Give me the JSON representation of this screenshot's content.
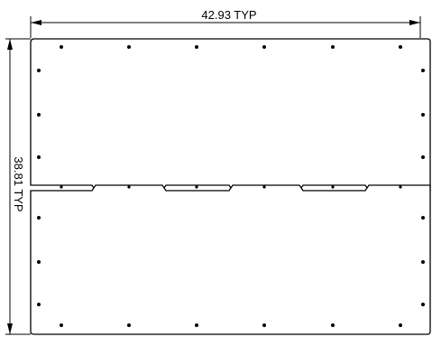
{
  "dimensions": {
    "width_label": "42.93 TYP",
    "height_label": "38.81 TYP"
  },
  "colors": {
    "line": "#000000",
    "background": "#ffffff"
  }
}
